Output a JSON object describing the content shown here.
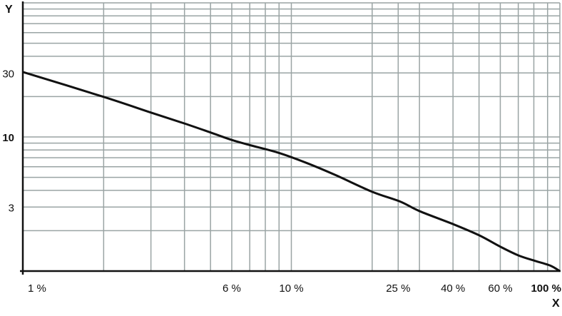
{
  "chart_data": {
    "type": "line",
    "title": "",
    "xlabel": "X",
    "ylabel": "Y",
    "x_scale": "log",
    "y_scale": "log",
    "xlim": [
      1,
      100
    ],
    "ylim": [
      1,
      100
    ],
    "grid": true,
    "x_ticks": [
      {
        "value": 1,
        "label": "1 %",
        "bold": false
      },
      {
        "value": 6,
        "label": "6 %",
        "bold": false
      },
      {
        "value": 10,
        "label": "10 %",
        "bold": false
      },
      {
        "value": 25,
        "label": "25 %",
        "bold": false
      },
      {
        "value": 40,
        "label": "40 %",
        "bold": false
      },
      {
        "value": 60,
        "label": "60 %",
        "bold": false
      },
      {
        "value": 100,
        "label": "100 %",
        "bold": true
      }
    ],
    "y_ticks": [
      {
        "value": 3,
        "label": "3",
        "bold": false
      },
      {
        "value": 10,
        "label": "10",
        "bold": true
      },
      {
        "value": 30,
        "label": "30",
        "bold": false
      }
    ],
    "x_grid": [
      2,
      3,
      4,
      5,
      6,
      7,
      8,
      9,
      10,
      20,
      25,
      30,
      40,
      50,
      60,
      70,
      80,
      90,
      100
    ],
    "y_grid": [
      2,
      3,
      4,
      5,
      6,
      7,
      8,
      9,
      10,
      20,
      30,
      40,
      50,
      60,
      70,
      80,
      90,
      100
    ],
    "series": [
      {
        "color": "#111111",
        "x": [
          1,
          2,
          3,
          4,
          5,
          6,
          7,
          9,
          11.4,
          14.6,
          20,
          25.4,
          30,
          40,
          50,
          60,
          70,
          81,
          92,
          100
        ],
        "y": [
          30.5,
          19.9,
          15.2,
          12.6,
          10.8,
          9.5,
          8.7,
          7.6,
          6.4,
          5.2,
          3.9,
          3.3,
          2.8,
          2.24,
          1.85,
          1.52,
          1.31,
          1.19,
          1.1,
          1.0
        ]
      }
    ],
    "colors": {
      "grid": "#9aa4a4",
      "axis": "#111111"
    }
  }
}
